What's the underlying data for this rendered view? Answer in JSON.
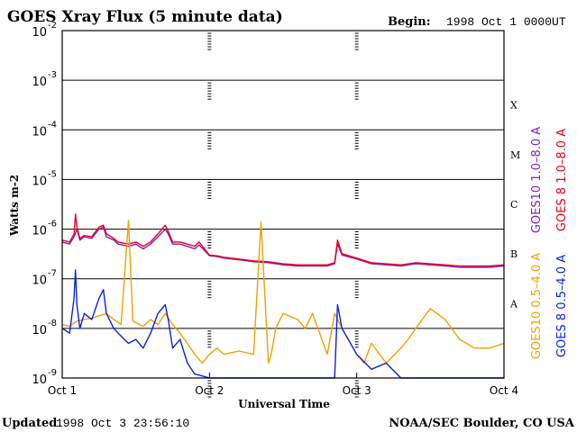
{
  "chart_data": {
    "type": "line",
    "title": "GOES Xray Flux (5 minute data)",
    "begin_label": "Begin:",
    "begin_value": "1998 Oct 1 0000UT",
    "xlabel": "Universal Time",
    "ylabel": "Watts m-2",
    "y_scale": "log",
    "ylim": [
      1e-09,
      0.01
    ],
    "y_ticks": [
      {
        "mantissa": "10",
        "exp": "-9",
        "value": 1e-09
      },
      {
        "mantissa": "10",
        "exp": "-8",
        "value": 1e-08
      },
      {
        "mantissa": "10",
        "exp": "-7",
        "value": 1e-07
      },
      {
        "mantissa": "10",
        "exp": "-6",
        "value": 1e-06
      },
      {
        "mantissa": "10",
        "exp": "-5",
        "value": 1e-05
      },
      {
        "mantissa": "10",
        "exp": "-4",
        "value": 0.0001
      },
      {
        "mantissa": "10",
        "exp": "-3",
        "value": 0.001
      },
      {
        "mantissa": "10",
        "exp": "-2",
        "value": 0.01
      }
    ],
    "xlim": [
      0,
      3
    ],
    "x_ticks": [
      {
        "label": "Oct 1",
        "value": 0
      },
      {
        "label": "Oct 2",
        "value": 1
      },
      {
        "label": "Oct 3",
        "value": 2
      },
      {
        "label": "Oct 4",
        "value": 3
      }
    ],
    "flare_classes": [
      {
        "label": "A",
        "value": 1e-08
      },
      {
        "label": "B",
        "value": 1e-07
      },
      {
        "label": "C",
        "value": 1e-06
      },
      {
        "label": "M",
        "value": 1e-05
      },
      {
        "label": "X",
        "value": 0.0001
      }
    ],
    "grid": true,
    "legend_placement": "right",
    "series": [
      {
        "name": "GOES10 1.0–8.0 A",
        "color": "#7f1fbf",
        "x": [
          0,
          0.05,
          0.08,
          0.1,
          0.12,
          0.15,
          0.2,
          0.25,
          0.28,
          0.3,
          0.35,
          0.38,
          0.45,
          0.5,
          0.55,
          0.6,
          0.65,
          0.7,
          0.72,
          0.75,
          0.8,
          0.85,
          0.9,
          0.93,
          1.0,
          1.05,
          1.1,
          1.2,
          1.3,
          1.4,
          1.5,
          1.6,
          1.7,
          1.8,
          1.85,
          1.87,
          1.9,
          2.0,
          2.1,
          2.2,
          2.3,
          2.4,
          2.5,
          2.6,
          2.7,
          2.8,
          2.9,
          3.0
        ],
        "y": [
          5.5e-07,
          5e-07,
          7e-07,
          1e-06,
          6e-07,
          7e-07,
          6.5e-07,
          1e-06,
          1.1e-06,
          7e-07,
          6e-07,
          5e-07,
          4.5e-07,
          5e-07,
          4e-07,
          5e-07,
          7e-07,
          1e-06,
          8e-07,
          5e-07,
          5e-07,
          4.5e-07,
          4e-07,
          4.8e-07,
          2.9e-07,
          2.8e-07,
          2.6e-07,
          2.4e-07,
          2.2e-07,
          2.1e-07,
          1.9e-07,
          1.8e-07,
          1.8e-07,
          1.8e-07,
          2e-07,
          5e-07,
          3e-07,
          2.5e-07,
          2e-07,
          1.9e-07,
          1.8e-07,
          2e-07,
          1.9e-07,
          1.8e-07,
          1.7e-07,
          1.7e-07,
          1.7e-07,
          1.8e-07
        ]
      },
      {
        "name": "GOES 8 1.0–8.0 A",
        "color": "#e8001c",
        "x": [
          0,
          0.05,
          0.08,
          0.09,
          0.1,
          0.12,
          0.15,
          0.2,
          0.25,
          0.28,
          0.3,
          0.35,
          0.38,
          0.45,
          0.5,
          0.55,
          0.6,
          0.65,
          0.7,
          0.72,
          0.75,
          0.8,
          0.85,
          0.9,
          0.93,
          1.0,
          1.05,
          1.1,
          1.2,
          1.3,
          1.4,
          1.5,
          1.6,
          1.7,
          1.8,
          1.85,
          1.87,
          1.9,
          2.0,
          2.1,
          2.2,
          2.3,
          2.4,
          2.5,
          2.6,
          2.7,
          2.8,
          2.9,
          3.0
        ],
        "y": [
          6e-07,
          5.5e-07,
          8e-07,
          2e-06,
          1.1e-06,
          6.5e-07,
          7.5e-07,
          7e-07,
          1.1e-06,
          1.2e-06,
          8e-07,
          6.5e-07,
          5.5e-07,
          5e-07,
          5.5e-07,
          4.5e-07,
          5.5e-07,
          8e-07,
          1.2e-06,
          9e-07,
          5.5e-07,
          5.5e-07,
          5e-07,
          4.5e-07,
          5.5e-07,
          3e-07,
          2.9e-07,
          2.7e-07,
          2.5e-07,
          2.3e-07,
          2.2e-07,
          2e-07,
          1.9e-07,
          1.9e-07,
          1.9e-07,
          2.1e-07,
          6e-07,
          3.2e-07,
          2.6e-07,
          2.1e-07,
          2e-07,
          1.9e-07,
          2.1e-07,
          2e-07,
          1.9e-07,
          1.8e-07,
          1.8e-07,
          1.8e-07,
          1.9e-07
        ]
      },
      {
        "name": "GOES10 0.5–4.0 A",
        "color": "#f0a000",
        "x": [
          0,
          0.05,
          0.1,
          0.15,
          0.2,
          0.25,
          0.3,
          0.35,
          0.4,
          0.45,
          0.48,
          0.5,
          0.55,
          0.6,
          0.65,
          0.7,
          0.75,
          0.8,
          0.85,
          0.9,
          0.95,
          1.0,
          1.05,
          1.1,
          1.2,
          1.3,
          1.35,
          1.4,
          1.42,
          1.45,
          1.5,
          1.6,
          1.65,
          1.7,
          1.8,
          1.85,
          1.9,
          2.0,
          2.05,
          2.1,
          2.2,
          2.3,
          2.35,
          2.4,
          2.5,
          2.6,
          2.7,
          2.8,
          2.9,
          3.0
        ],
        "y": [
          1.2e-08,
          1.1e-08,
          1.4e-08,
          1.5e-08,
          1.6e-08,
          1.8e-08,
          2e-08,
          1.5e-08,
          1.2e-08,
          1.5e-06,
          1.4e-08,
          1.3e-08,
          1.1e-08,
          1.5e-08,
          1.2e-08,
          2e-08,
          1.2e-08,
          8e-09,
          5e-09,
          3e-09,
          2e-09,
          3e-09,
          4e-09,
          3e-09,
          3.5e-09,
          3e-09,
          1.4e-06,
          2e-09,
          3e-09,
          1e-08,
          2e-08,
          1.5e-08,
          1e-08,
          2e-08,
          3e-09,
          2e-08,
          1e-08,
          3e-09,
          2e-09,
          5e-09,
          2e-09,
          4e-09,
          6e-09,
          1e-08,
          2.5e-08,
          1.5e-08,
          6e-09,
          4e-09,
          4e-09,
          5e-09
        ]
      },
      {
        "name": "GOES 8 0.5–4.0 A",
        "color": "#0a22e0",
        "x": [
          0,
          0.05,
          0.08,
          0.09,
          0.1,
          0.12,
          0.15,
          0.2,
          0.25,
          0.28,
          0.3,
          0.35,
          0.38,
          0.45,
          0.5,
          0.55,
          0.6,
          0.65,
          0.7,
          0.72,
          0.75,
          0.8,
          0.85,
          0.9,
          0.95,
          1.0,
          1.05,
          1.1,
          1.2,
          1.3,
          1.4,
          1.5,
          1.6,
          1.7,
          1.8,
          1.85,
          1.87,
          1.9,
          2.0,
          2.1,
          2.2,
          2.3,
          2.4,
          2.5,
          2.6,
          2.7,
          2.8,
          2.9,
          3.0
        ],
        "y": [
          1e-08,
          8e-09,
          4e-08,
          1.5e-07,
          3e-08,
          1e-08,
          2e-08,
          1.5e-08,
          4e-08,
          6e-08,
          2e-08,
          1e-08,
          8e-09,
          5e-09,
          6e-09,
          4e-09,
          8e-09,
          2e-08,
          3e-08,
          1.5e-08,
          4e-09,
          6e-09,
          2e-09,
          1.2e-09,
          1.1e-09,
          1e-09,
          1e-09,
          1e-09,
          1e-09,
          1e-09,
          1e-09,
          1e-09,
          1e-09,
          1e-09,
          1e-09,
          1e-09,
          3e-08,
          1e-08,
          3e-09,
          1.5e-09,
          2e-09,
          1e-09,
          1e-09,
          1e-09,
          1e-09,
          1e-09,
          1e-09,
          1e-09,
          1e-09
        ]
      }
    ]
  },
  "footer": {
    "updated_label": "Updated",
    "updated_value": "1998 Oct  3 23:56:10",
    "credit": "NOAA/SEC Boulder, CO USA"
  }
}
